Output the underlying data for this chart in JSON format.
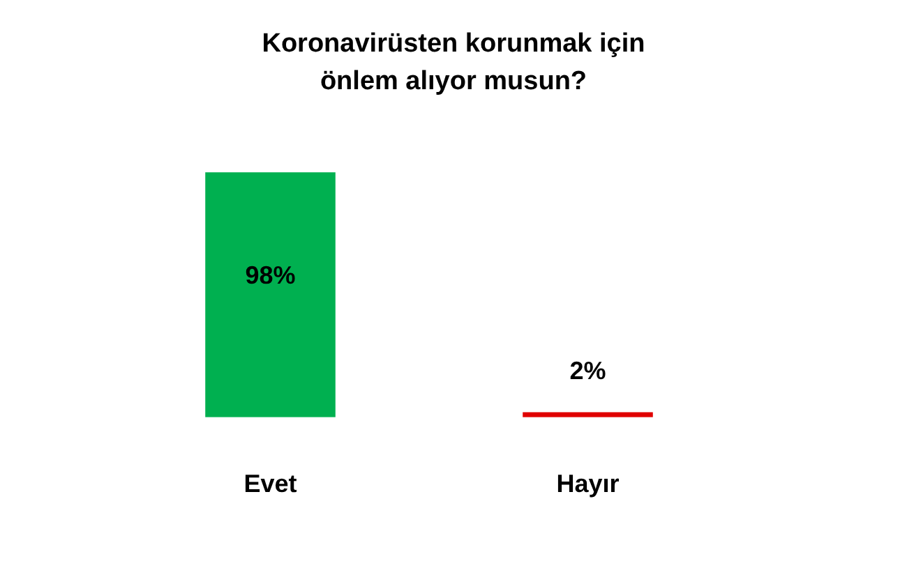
{
  "chart_data": {
    "type": "bar",
    "title": "Koronavirüsten korunmak için önlem alıyor musun?",
    "categories": [
      "Evet",
      "Hayır"
    ],
    "values": [
      98,
      2
    ],
    "colors": [
      "#00b050",
      "#e00000"
    ],
    "value_labels": [
      "98%",
      "2%"
    ],
    "grid": false,
    "legend": false
  }
}
